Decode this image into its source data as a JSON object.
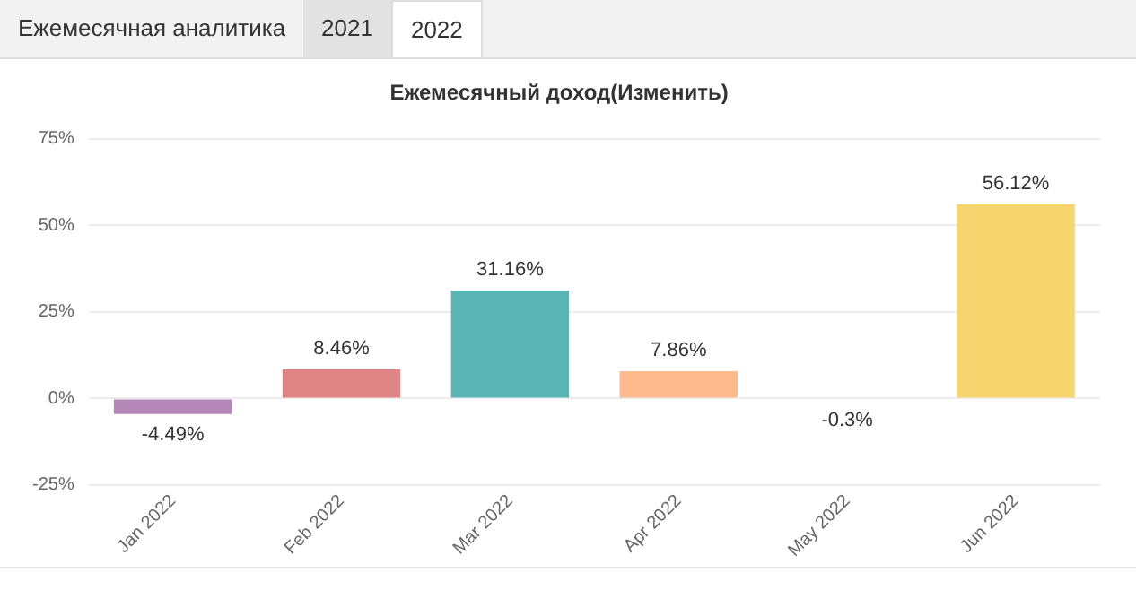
{
  "chart_data": {
    "type": "bar",
    "title": "Ежемесячный доход(Изменить)",
    "annotations": [
      "Ежемесячная аналитика",
      "2021",
      "2022"
    ],
    "categories": [
      "Jan 2022",
      "Feb 2022",
      "Mar 2022",
      "Apr 2022",
      "May 2022",
      "Jun 2022"
    ],
    "values": [
      -4.49,
      8.46,
      31.16,
      7.86,
      -0.3,
      56.12
    ],
    "colors": [
      "#b586b8",
      "#e08585",
      "#5ab5b5",
      "#ffba8e",
      "#a9a9f0",
      "#f7d56e"
    ],
    "value_labels": [
      "-4.49%",
      "8.46%",
      "31.16%",
      "7.86%",
      "-0.3%",
      "56.12%"
    ],
    "ylim": [
      -25,
      75
    ],
    "yticks": [
      {
        "value": -25,
        "label": "-25%"
      },
      {
        "value": 0,
        "label": "0%"
      },
      {
        "value": 25,
        "label": "25%"
      },
      {
        "value": 50,
        "label": "50%"
      },
      {
        "value": 75,
        "label": "75%"
      }
    ],
    "grid": "y",
    "legend": false
  }
}
